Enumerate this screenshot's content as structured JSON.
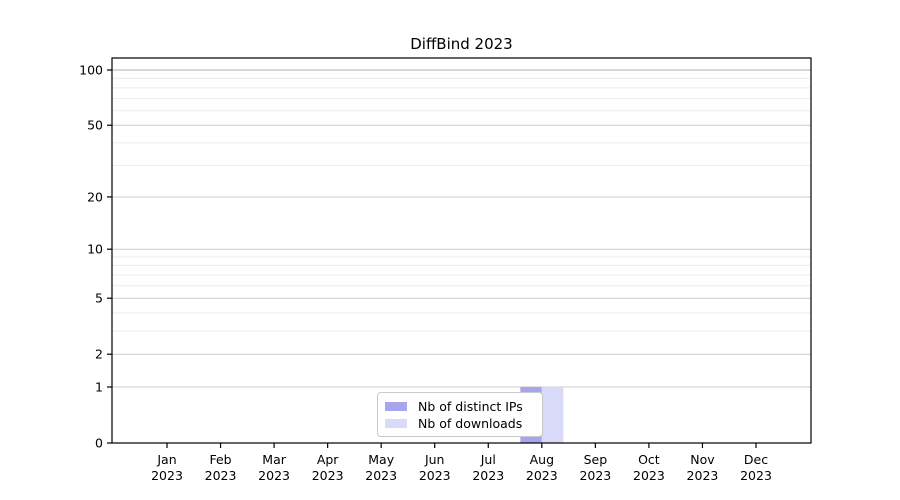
{
  "chart_data": {
    "type": "bar",
    "title": "DiffBind 2023",
    "categories": [
      "Jan",
      "Feb",
      "Mar",
      "Apr",
      "May",
      "Jun",
      "Jul",
      "Aug",
      "Sep",
      "Oct",
      "Nov",
      "Dec"
    ],
    "x_tick_year": "2023",
    "series": [
      {
        "name": "Nb of distinct IPs",
        "color": "#a6a6ee",
        "values": [
          0,
          0,
          0,
          0,
          0,
          0,
          0,
          1,
          0,
          0,
          0,
          0
        ]
      },
      {
        "name": "Nb of downloads",
        "color": "#d9d9f8",
        "values": [
          0,
          0,
          0,
          0,
          0,
          0,
          0,
          1,
          0,
          0,
          0,
          0
        ]
      }
    ],
    "y_scale": "log1p",
    "y_ticks": [
      0,
      1,
      2,
      5,
      10,
      20,
      50,
      100
    ],
    "y_minor_ticks": [
      3,
      4,
      6,
      7,
      8,
      9,
      30,
      40,
      60,
      70,
      80,
      90
    ],
    "ylim": [
      0,
      116
    ],
    "grid": true,
    "legend_position": "bottom-center",
    "colors": {
      "axis": "#000000",
      "grid_major": "#cccccc",
      "grid_minor": "#ececec",
      "grid_top": "#b0b0b0",
      "background": "#ffffff"
    }
  }
}
